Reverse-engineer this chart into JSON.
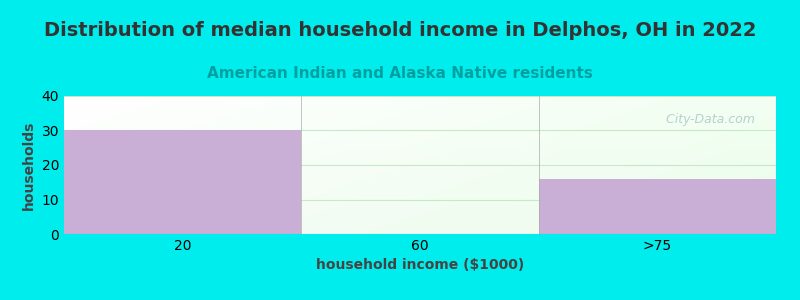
{
  "title": "Distribution of median household income in Delphos, OH in 2022",
  "subtitle": "American Indian and Alaska Native residents",
  "xlabel": "household income ($1000)",
  "ylabel": "households",
  "categories": [
    "20",
    "60",
    ">75"
  ],
  "values": [
    30,
    0,
    16
  ],
  "bar_color": "#c9aed6",
  "ylim": [
    0,
    40
  ],
  "yticks": [
    0,
    10,
    20,
    30,
    40
  ],
  "background_color": "#00eded",
  "title_fontsize": 14,
  "subtitle_fontsize": 11,
  "subtitle_color": "#00a0a0",
  "axis_label_fontsize": 10,
  "watermark_text": "  City-Data.com",
  "watermark_color": "#aacaca",
  "grid_color": "#c8e8c8",
  "tick_label_fontsize": 10,
  "title_color": "#333333",
  "bin_edges": [
    0,
    1,
    2,
    3
  ],
  "xtick_positions": [
    0.5,
    1.5,
    2.5
  ],
  "xlim": [
    0,
    3
  ]
}
